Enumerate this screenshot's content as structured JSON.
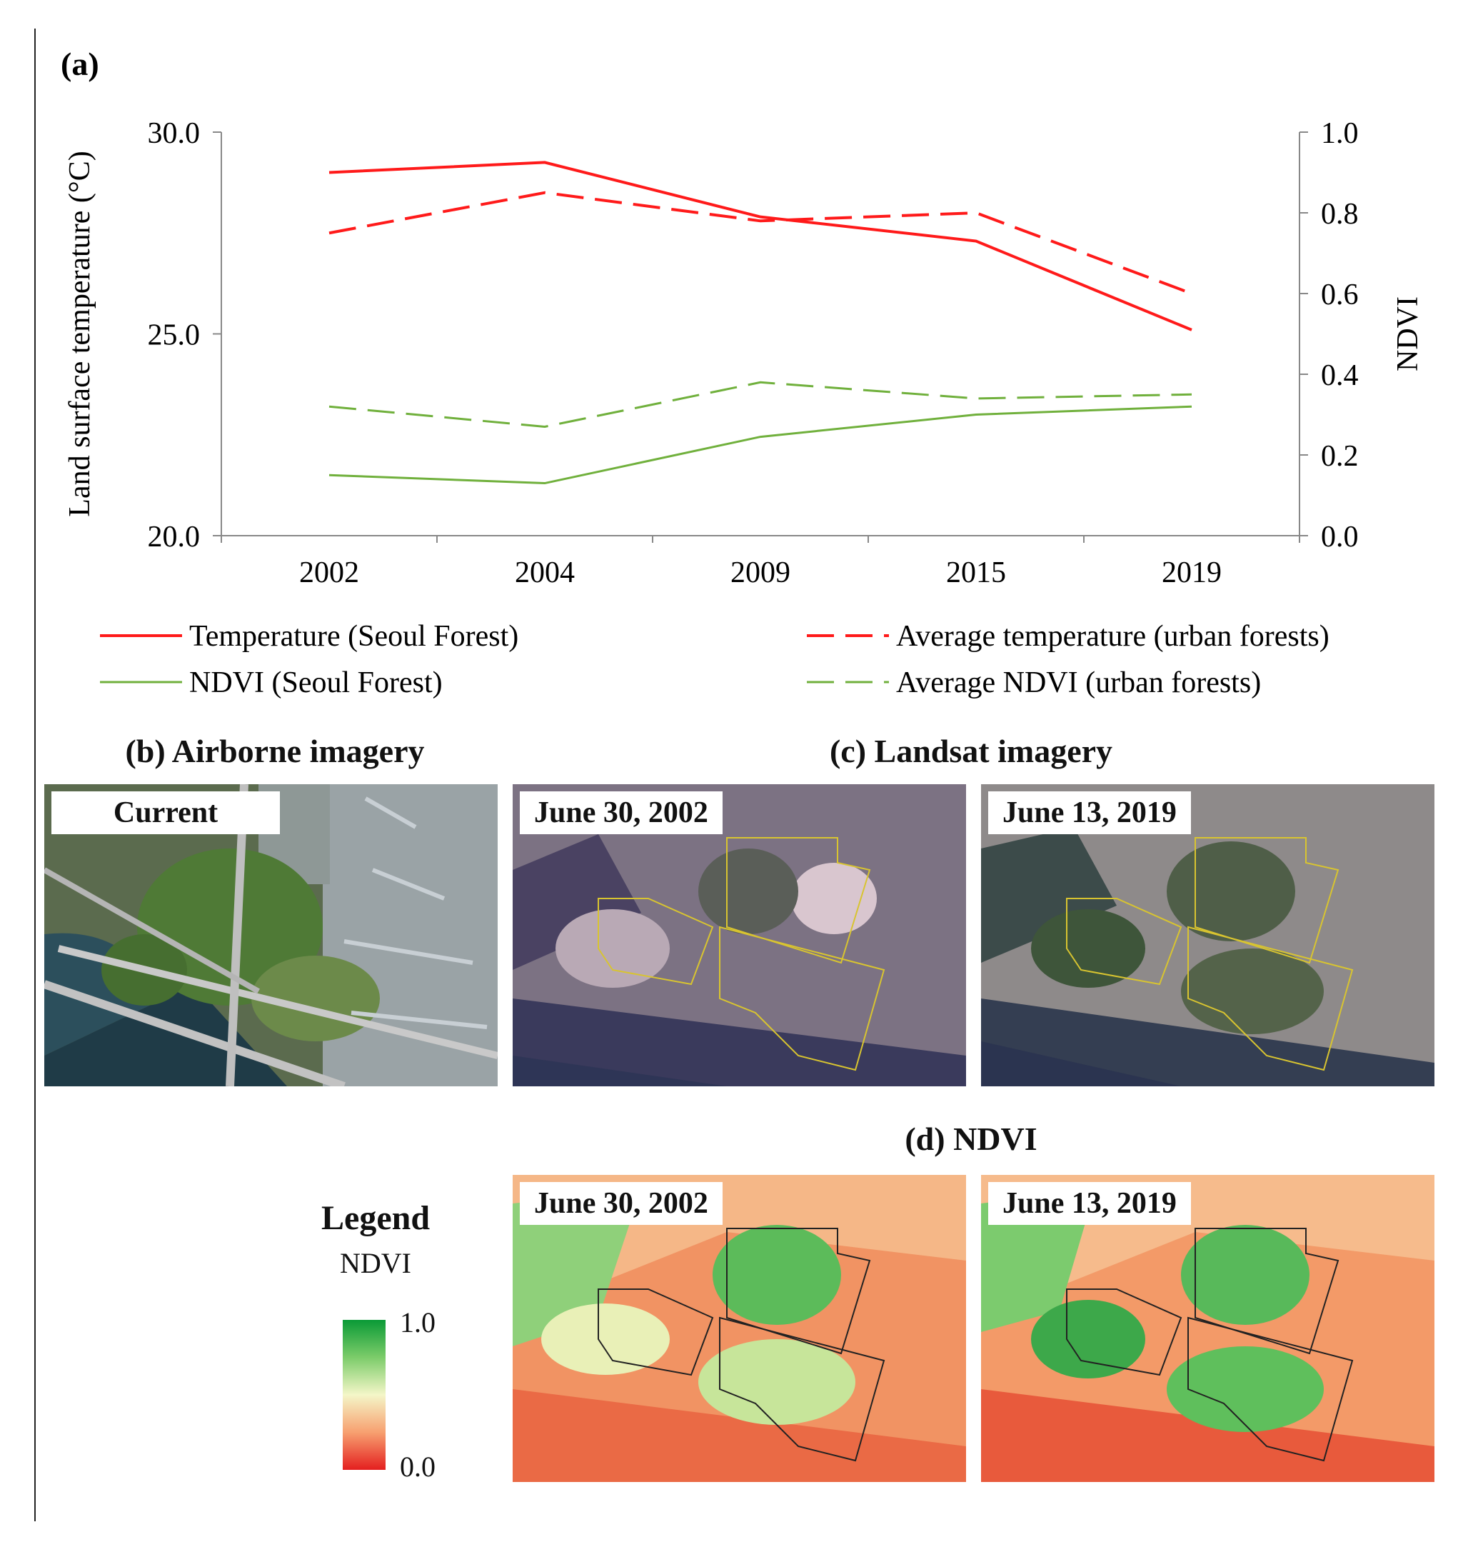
{
  "panels": {
    "a_label": "(a)",
    "b_title": "(b) Airborne imagery",
    "c_title": "(c) Landsat imagery",
    "d_title": "(d) NDVI"
  },
  "image_labels": {
    "airborne": "Current",
    "landsat_2002": "June 30, 2002",
    "landsat_2019": "June 13, 2019",
    "ndvi_2002": "June 30, 2002",
    "ndvi_2019": "June 13, 2019"
  },
  "ndvi_legend": {
    "title": "Legend",
    "subtitle": "NDVI",
    "max_label": "1.0",
    "min_label": "0.0"
  },
  "colors": {
    "temperature": "#ff1a1a",
    "ndvi": "#70b03c",
    "axis": "#888888"
  },
  "chart_data": {
    "type": "line",
    "title": "",
    "categories": [
      "2002",
      "2004",
      "2009",
      "2015",
      "2019"
    ],
    "xlabel": "",
    "ylabel": "Land surface temperature (°C)",
    "ylim": [
      20,
      30
    ],
    "yticks": [
      "20.0",
      "25.0",
      "30.0"
    ],
    "y2label": "NDVI",
    "y2lim": [
      0,
      1
    ],
    "y2ticks": [
      "0.0",
      "0.2",
      "0.4",
      "0.6",
      "0.8",
      "1.0"
    ],
    "legend_position": "bottom",
    "series": [
      {
        "name": "Temperature (Seoul Forest)",
        "axis": "left",
        "style": "solid",
        "color": "#ff1a1a",
        "values": [
          29.0,
          29.25,
          27.9,
          27.3,
          25.1
        ]
      },
      {
        "name": "Average temperature (urban forests)",
        "axis": "left",
        "style": "dashed",
        "color": "#ff1a1a",
        "values": [
          27.5,
          28.5,
          27.8,
          28.0,
          26.0
        ]
      },
      {
        "name": "NDVI (Seoul Forest)",
        "axis": "right",
        "style": "solid",
        "color": "#70b03c",
        "values": [
          0.15,
          0.13,
          0.245,
          0.3,
          0.32
        ]
      },
      {
        "name": "Average NDVI (urban forests)",
        "axis": "right",
        "style": "dashed",
        "color": "#70b03c",
        "values": [
          0.32,
          0.27,
          0.38,
          0.34,
          0.35
        ]
      }
    ]
  }
}
